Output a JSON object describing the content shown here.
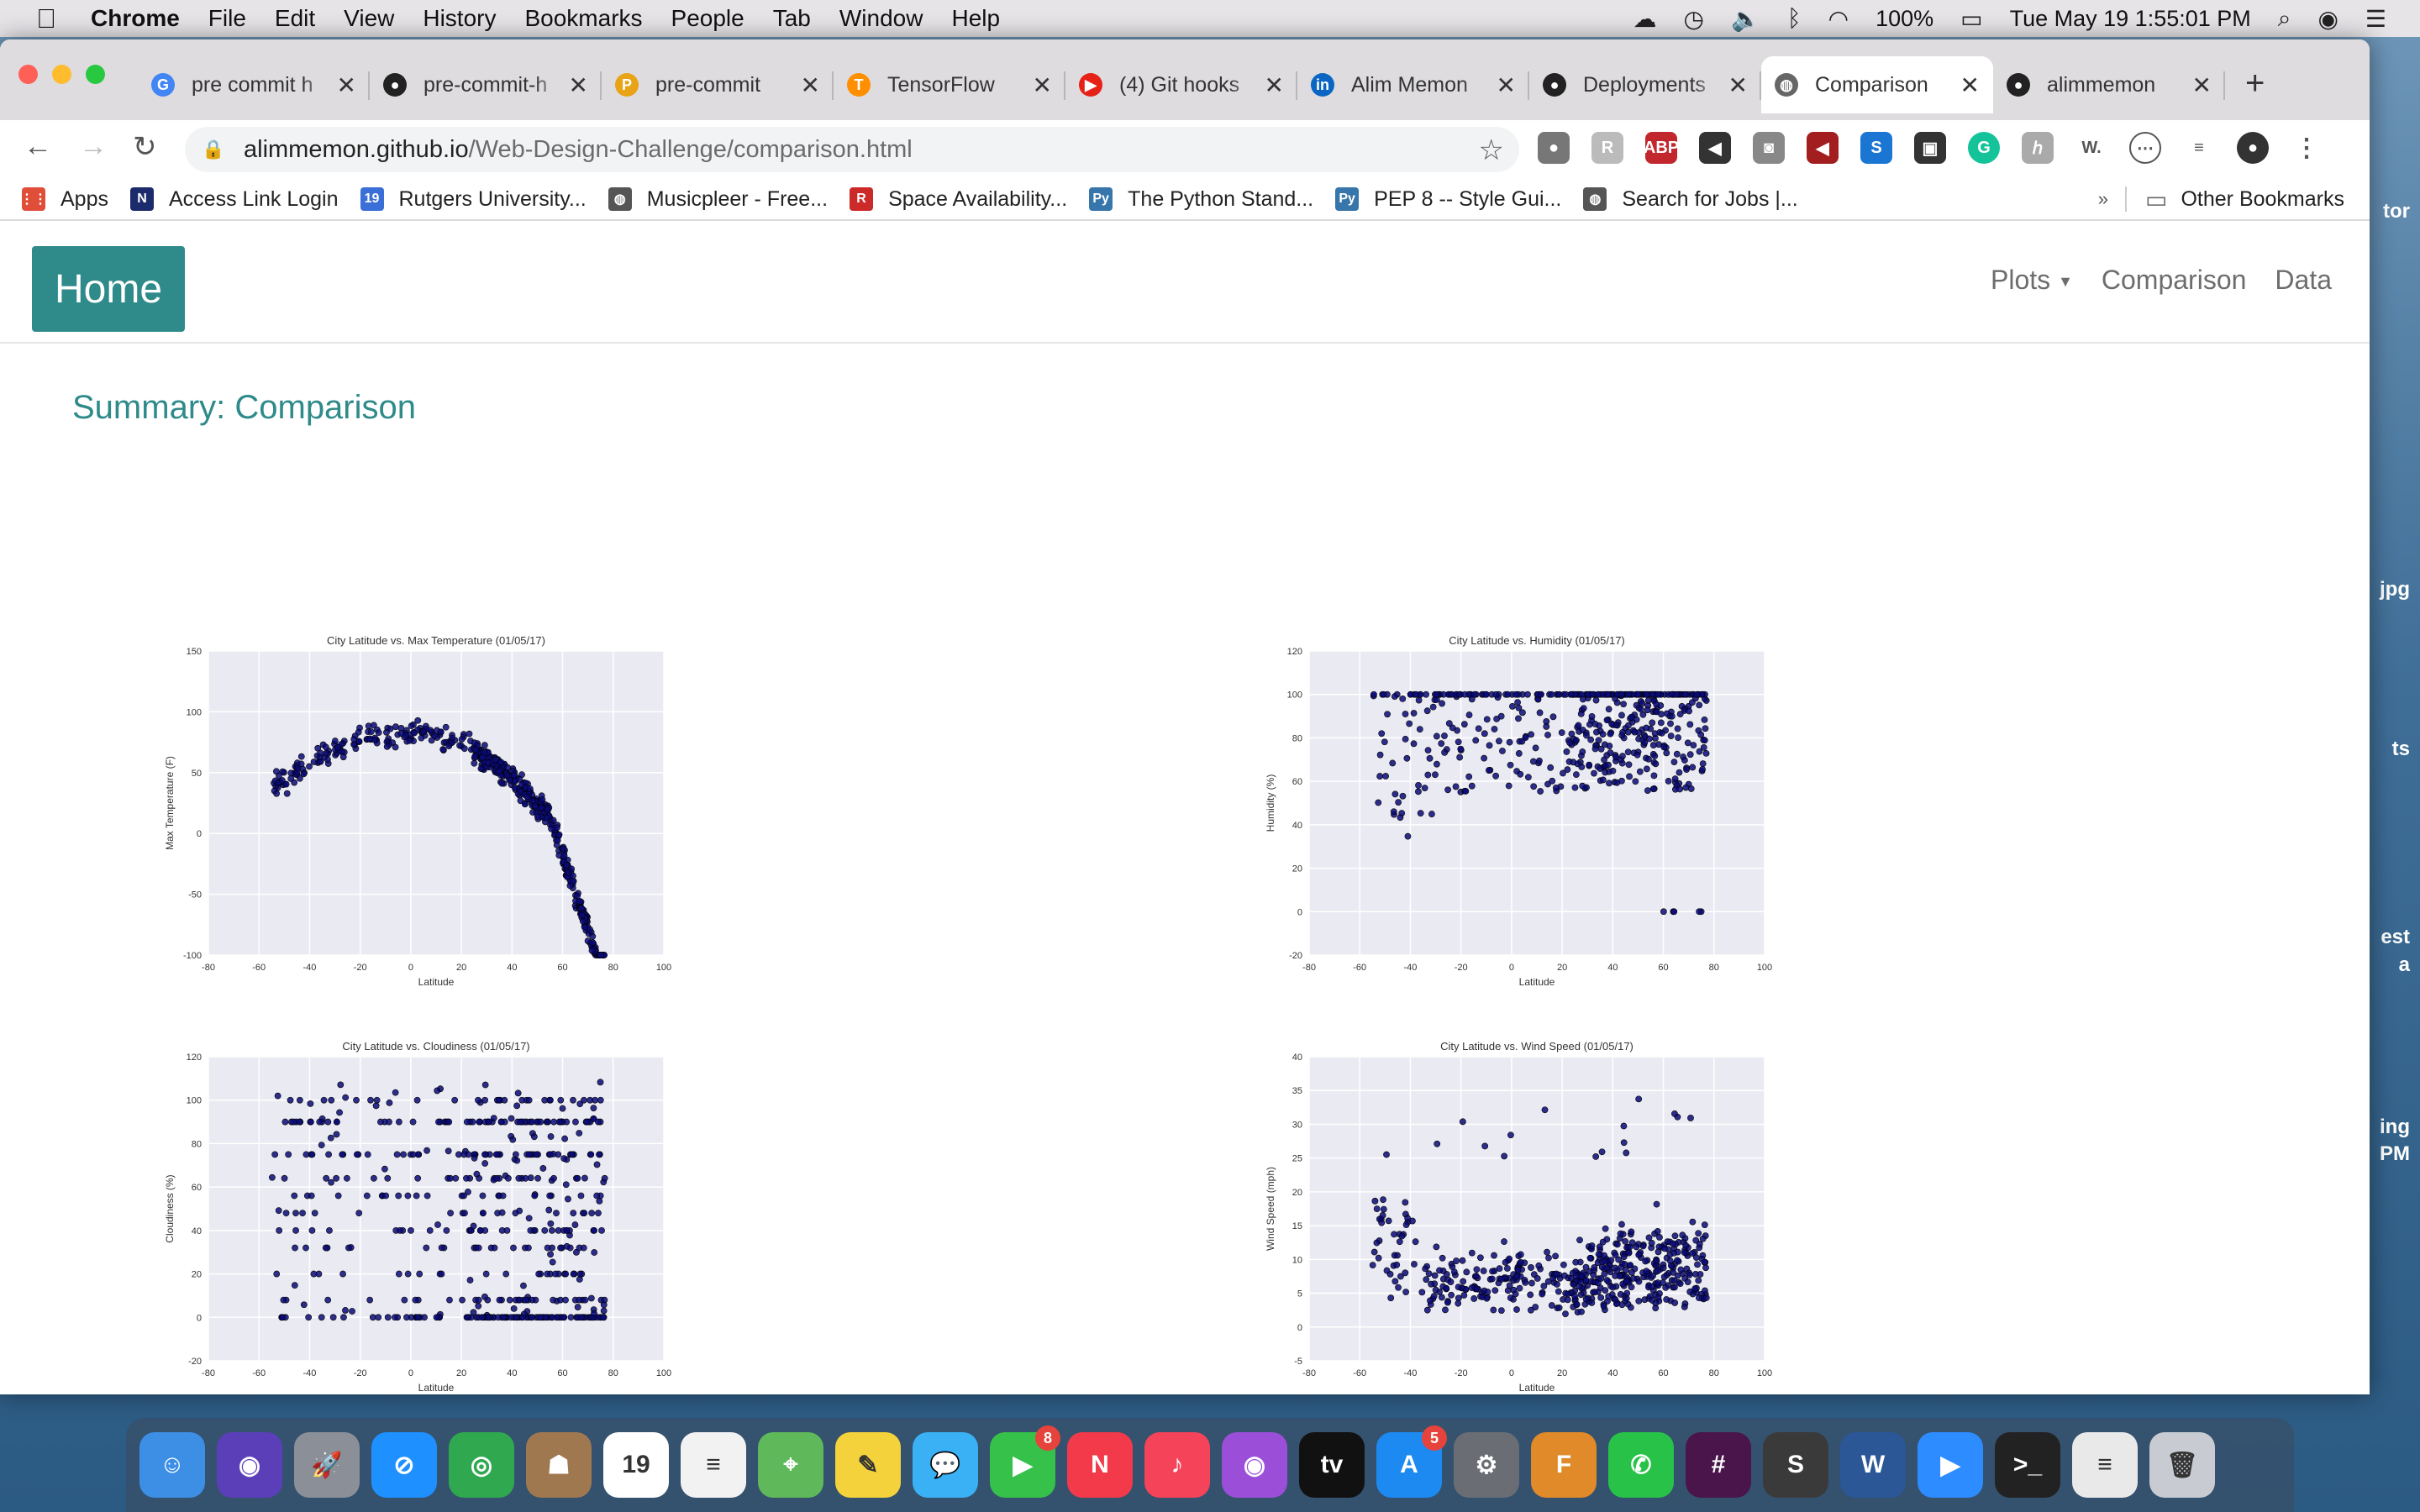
{
  "menubar": {
    "app": "Chrome",
    "items": [
      "File",
      "Edit",
      "View",
      "History",
      "Bookmarks",
      "People",
      "Tab",
      "Window",
      "Help"
    ],
    "battery": "100%",
    "datetime": "Tue May 19  1:55:01 PM"
  },
  "tabs": [
    {
      "title": "pre commit h",
      "icon": "google-icon",
      "color": "#4285f4",
      "glyph": "G"
    },
    {
      "title": "pre-commit-h",
      "icon": "github-icon",
      "color": "#222222",
      "glyph": "●"
    },
    {
      "title": "pre-commit",
      "icon": "p-icon",
      "color": "#e8a317",
      "glyph": "P"
    },
    {
      "title": "TensorFlow",
      "icon": "tensorflow-icon",
      "color": "#ff8f00",
      "glyph": "T"
    },
    {
      "title": "(4) Git hooks",
      "icon": "youtube-icon",
      "color": "#e62117",
      "glyph": "▶"
    },
    {
      "title": "Alim Memon",
      "icon": "linkedin-icon",
      "color": "#0a66c2",
      "glyph": "in"
    },
    {
      "title": "Deployments",
      "icon": "github-icon",
      "color": "#222222",
      "glyph": "●"
    },
    {
      "title": "Comparison",
      "icon": "globe-icon",
      "color": "#666666",
      "glyph": "◍"
    },
    {
      "title": "alimmemon",
      "icon": "github-icon",
      "color": "#222222",
      "glyph": "●"
    }
  ],
  "active_tab": 7,
  "url": {
    "host": "alimmemon.github.io",
    "path": "/Web-Design-Challenge/comparison.html"
  },
  "bookmarks": [
    {
      "label": "Apps",
      "color": "#e04e3a",
      "glyph": "⋮⋮"
    },
    {
      "label": "Access Link Login",
      "color": "#1c2b6b",
      "glyph": "N"
    },
    {
      "label": "Rutgers University...",
      "color": "#3b6fd8",
      "glyph": "19"
    },
    {
      "label": "Musicpleer - Free...",
      "color": "#555555",
      "glyph": "◍"
    },
    {
      "label": "Space Availability...",
      "color": "#cc2929",
      "glyph": "R"
    },
    {
      "label": "The Python Stand...",
      "color": "#3776ab",
      "glyph": "Py"
    },
    {
      "label": "PEP 8 -- Style Gui...",
      "color": "#3776ab",
      "glyph": "Py"
    },
    {
      "label": "Search for Jobs |...",
      "color": "#555555",
      "glyph": "◍"
    }
  ],
  "bookmarks_other": "Other Bookmarks",
  "page": {
    "home": "Home",
    "nav": {
      "plots": "Plots",
      "comparison": "Comparison",
      "data": "Data"
    },
    "summary": "Summary: Comparison"
  },
  "chart_data": [
    {
      "type": "scatter",
      "title": "City Latitude vs. Max Temperature (01/05/17)",
      "xlabel": "Latitude",
      "ylabel": "Max Temperature (F)",
      "xlim": [
        -80,
        100
      ],
      "ylim": [
        -100,
        150
      ],
      "xticks": [
        -80,
        -60,
        -40,
        -20,
        0,
        20,
        40,
        60,
        80,
        100
      ],
      "yticks": [
        -100,
        -50,
        0,
        50,
        100,
        150
      ],
      "color": "#0a0a78",
      "model": "temp"
    },
    {
      "type": "scatter",
      "title": "City Latitude vs. Humidity (01/05/17)",
      "xlabel": "Latitude",
      "ylabel": "Humidity (%)",
      "xlim": [
        -80,
        100
      ],
      "ylim": [
        -20,
        120
      ],
      "xticks": [
        -80,
        -60,
        -40,
        -20,
        0,
        20,
        40,
        60,
        80,
        100
      ],
      "yticks": [
        -20,
        0,
        20,
        40,
        60,
        80,
        100,
        120
      ],
      "color": "#0a0a78",
      "model": "humidity"
    },
    {
      "type": "scatter",
      "title": "City Latitude vs. Cloudiness (01/05/17)",
      "xlabel": "Latitude",
      "ylabel": "Cloudiness (%)",
      "xlim": [
        -80,
        100
      ],
      "ylim": [
        -20,
        120
      ],
      "xticks": [
        -80,
        -60,
        -40,
        -20,
        0,
        20,
        40,
        60,
        80,
        100
      ],
      "yticks": [
        -20,
        0,
        20,
        40,
        60,
        80,
        100,
        120
      ],
      "color": "#0a0a78",
      "model": "cloud"
    },
    {
      "type": "scatter",
      "title": "City Latitude vs. Wind Speed (01/05/17)",
      "xlabel": "Latitude",
      "ylabel": "Wind Speed (mph)",
      "xlim": [
        -80,
        100
      ],
      "ylim": [
        -5,
        40
      ],
      "xticks": [
        -80,
        -60,
        -40,
        -20,
        0,
        20,
        40,
        60,
        80,
        100
      ],
      "yticks": [
        -5,
        0,
        5,
        10,
        15,
        20,
        25,
        30,
        35,
        40
      ],
      "color": "#0a0a78",
      "model": "wind"
    }
  ],
  "dock": [
    {
      "name": "finder-icon",
      "color": "#3d8fe6",
      "glyph": "☺"
    },
    {
      "name": "siri-icon",
      "color": "#5b3fb8",
      "glyph": "◉"
    },
    {
      "name": "launchpad-icon",
      "color": "#8a8f98",
      "glyph": "🚀"
    },
    {
      "name": "safari-icon",
      "color": "#1e90ff",
      "glyph": "⊘"
    },
    {
      "name": "chrome-icon",
      "color": "#2fa84f",
      "glyph": "◎"
    },
    {
      "name": "contacts-icon",
      "color": "#a07850",
      "glyph": "☗"
    },
    {
      "name": "calendar-icon",
      "color": "#ffffff",
      "glyph": "19"
    },
    {
      "name": "reminders-icon",
      "color": "#f2f2f2",
      "glyph": "≡"
    },
    {
      "name": "maps-icon",
      "color": "#5fb85a",
      "glyph": "⌖"
    },
    {
      "name": "notes-icon",
      "color": "#f4d23c",
      "glyph": "✎"
    },
    {
      "name": "messages-icon",
      "color": "#3ab0f5",
      "glyph": "💬"
    },
    {
      "name": "facetime-icon",
      "color": "#36c14a",
      "glyph": "▶",
      "badge": "8"
    },
    {
      "name": "news-icon",
      "color": "#f23a4a",
      "glyph": "N"
    },
    {
      "name": "music-icon",
      "color": "#f5435a",
      "glyph": "♪"
    },
    {
      "name": "podcasts-icon",
      "color": "#9b4fd8",
      "glyph": "◉"
    },
    {
      "name": "appletv-icon",
      "color": "#111111",
      "glyph": "tv"
    },
    {
      "name": "appstore-icon",
      "color": "#1d8af2",
      "glyph": "A",
      "badge": "5"
    },
    {
      "name": "system-preferences-icon",
      "color": "#6a6d73",
      "glyph": "⚙"
    },
    {
      "name": "fusion360-icon",
      "color": "#e08a2a",
      "glyph": "F"
    },
    {
      "name": "whatsapp-icon",
      "color": "#28c248",
      "glyph": "✆"
    },
    {
      "name": "slack-icon",
      "color": "#4a154b",
      "glyph": "#"
    },
    {
      "name": "sublime-icon",
      "color": "#3a3a3a",
      "glyph": "S"
    },
    {
      "name": "word-icon",
      "color": "#2b5797",
      "glyph": "W"
    },
    {
      "name": "zoom-icon",
      "color": "#2d8cff",
      "glyph": "▶"
    },
    {
      "name": "terminal-icon",
      "color": "#222222",
      "glyph": ">_"
    },
    {
      "name": "document-icon",
      "color": "#e9e9e9",
      "glyph": "≡"
    },
    {
      "name": "trash-icon",
      "color": "#c8ccd2",
      "glyph": "🗑"
    }
  ]
}
